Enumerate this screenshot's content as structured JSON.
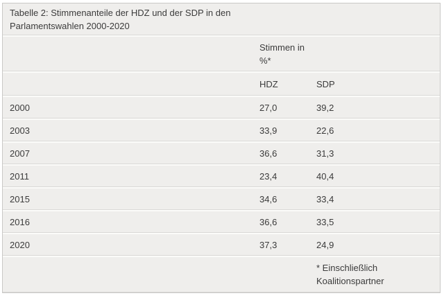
{
  "chart_data": {
    "type": "table",
    "title": "Tabelle 2: Stimmenanteile der HDZ und der SDP in den Parlamentswahlen 2000-2020",
    "group_header": "Stimmen in %*",
    "categories": [
      "2000",
      "2003",
      "2007",
      "2011",
      "2015",
      "2016",
      "2020"
    ],
    "series": [
      {
        "name": "HDZ",
        "values": [
          27.0,
          33.9,
          36.6,
          23.4,
          34.6,
          36.6,
          37.3
        ]
      },
      {
        "name": "SDP",
        "values": [
          39.2,
          22.6,
          31.3,
          40.4,
          33.4,
          33.5,
          24.9
        ]
      }
    ],
    "footnote": "* Einschließlich Koalitionspartner"
  },
  "table": {
    "title": "Tabelle 2: Stimmenanteile der HDZ und der SDP in den Parlamentswahlen 2000-2020",
    "group_header": "Stimmen in %*",
    "column_headers": {
      "hdz": "HDZ",
      "sdp": "SDP"
    },
    "rows": [
      {
        "year": "2000",
        "hdz": "27,0",
        "sdp": "39,2"
      },
      {
        "year": "2003",
        "hdz": "33,9",
        "sdp": "22,6"
      },
      {
        "year": "2007",
        "hdz": "36,6",
        "sdp": "31,3"
      },
      {
        "year": "2011",
        "hdz": "23,4",
        "sdp": "40,4"
      },
      {
        "year": "2015",
        "hdz": "34,6",
        "sdp": "33,4"
      },
      {
        "year": "2016",
        "hdz": "36,6",
        "sdp": "33,5"
      },
      {
        "year": "2020",
        "hdz": "37,3",
        "sdp": "24,9"
      }
    ],
    "footnote": "* Einschließlich Koalitionspartner"
  },
  "colors": {
    "row_background": "#efeeec",
    "separator_light": "#fbfbf9",
    "separator_dark": "#dad9d7",
    "outer_border": "#c9c8c6",
    "text": "#3b3b3b",
    "page_background": "#ffffff"
  }
}
